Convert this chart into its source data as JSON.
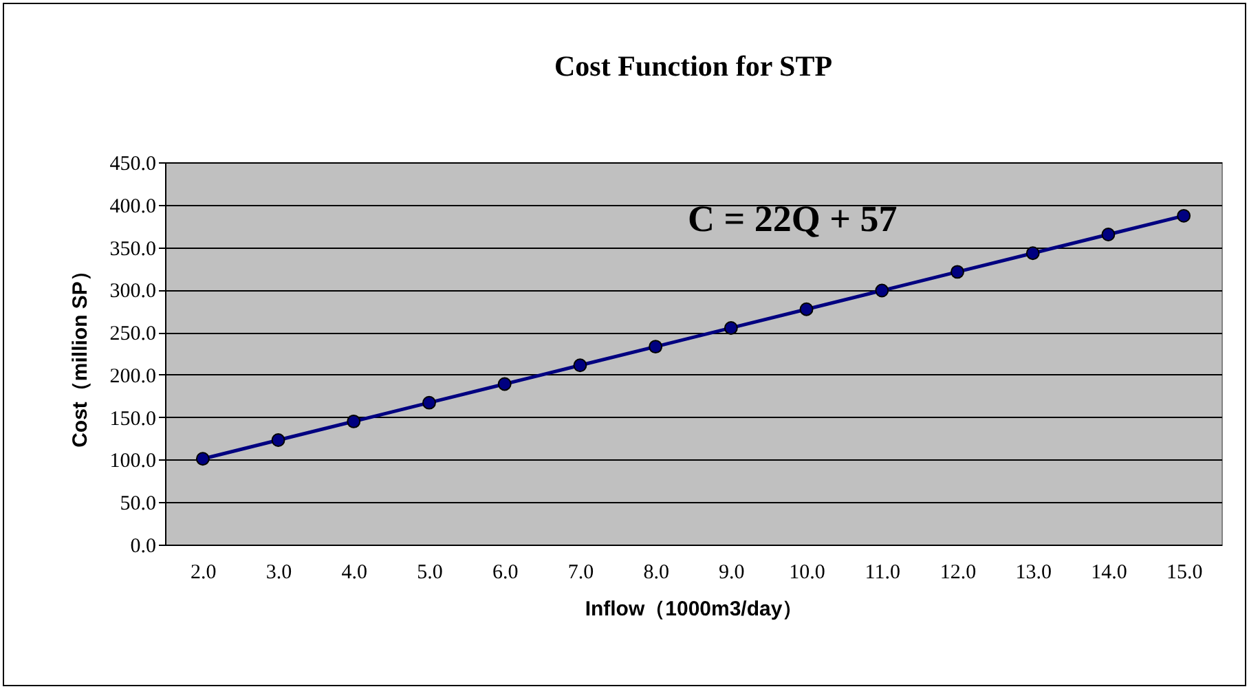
{
  "chart_data": {
    "type": "line",
    "title": "Cost Function for STP",
    "xlabel": "Inflow（1000m3/day）",
    "ylabel": "Cost（million SP）",
    "categories": [
      "2.0",
      "3.0",
      "4.0",
      "5.0",
      "6.0",
      "7.0",
      "8.0",
      "9.0",
      "10.0",
      "11.0",
      "12.0",
      "13.0",
      "14.0",
      "15.0"
    ],
    "series": [
      {
        "color": "#000080",
        "values": [
          101,
          123,
          145,
          167,
          189,
          211,
          233,
          255,
          277,
          299,
          321,
          343,
          365,
          387
        ]
      }
    ],
    "ylim": [
      0,
      450
    ],
    "yticks": [
      {
        "value": 0,
        "label": "0.0"
      },
      {
        "value": 50,
        "label": "50.0"
      },
      {
        "value": 100,
        "label": "100.0"
      },
      {
        "value": 150,
        "label": "150.0"
      },
      {
        "value": 200,
        "label": "200.0"
      },
      {
        "value": 250,
        "label": "250.0"
      },
      {
        "value": 300,
        "label": "300.0"
      },
      {
        "value": 350,
        "label": "350.0"
      },
      {
        "value": 400,
        "label": "400.0"
      },
      {
        "value": 450,
        "label": "450.0"
      }
    ],
    "annotations": [
      "C = 22Q + 57"
    ],
    "grid": "y",
    "marker": "circle",
    "line_style": "solid"
  }
}
